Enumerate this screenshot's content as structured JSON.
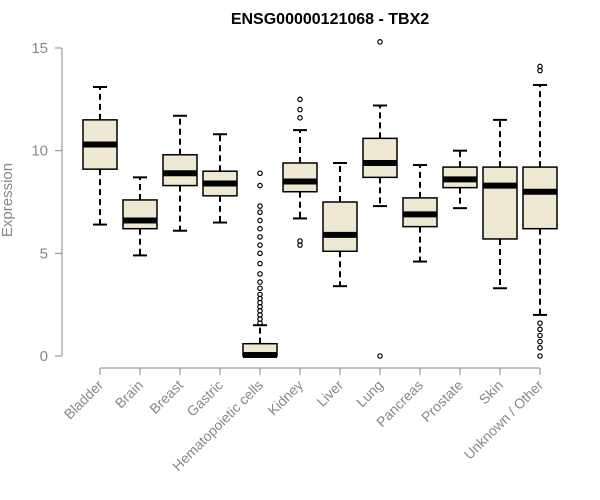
{
  "chart_data": {
    "type": "box",
    "title": "ENSG00000121068 - TBX2",
    "ylabel": "Expression",
    "xlabel": "",
    "ylim": [
      0,
      15
    ],
    "yticks": [
      0,
      5,
      10,
      15
    ],
    "colors": {
      "box_fill": "#EEE8D2",
      "box_stroke": "#000000",
      "axis": "#888888",
      "tick_label": "#888888",
      "title": "#000000"
    },
    "categories": [
      "Bladder",
      "Brain",
      "Breast",
      "Gastric",
      "Hematopoietic cells",
      "Kidney",
      "Liver",
      "Lung",
      "Pancreas",
      "Prostate",
      "Skin",
      "Unknown / Other"
    ],
    "boxes": [
      {
        "name": "Bladder",
        "whisker_low": 6.4,
        "q1": 9.1,
        "median": 10.3,
        "q3": 11.5,
        "whisker_high": 13.1,
        "outliers": []
      },
      {
        "name": "Brain",
        "whisker_low": 4.9,
        "q1": 6.2,
        "median": 6.6,
        "q3": 7.6,
        "whisker_high": 8.7,
        "outliers": []
      },
      {
        "name": "Breast",
        "whisker_low": 6.1,
        "q1": 8.3,
        "median": 8.9,
        "q3": 9.8,
        "whisker_high": 11.7,
        "outliers": []
      },
      {
        "name": "Gastric",
        "whisker_low": 6.5,
        "q1": 7.8,
        "median": 8.4,
        "q3": 9.0,
        "whisker_high": 10.8,
        "outliers": []
      },
      {
        "name": "Hematopoietic cells",
        "whisker_low": 0.0,
        "q1": 0.0,
        "median": 0.05,
        "q3": 0.6,
        "whisker_high": 1.5,
        "outliers": [
          1.6,
          1.8,
          2.0,
          2.2,
          2.4,
          2.6,
          2.8,
          3.0,
          3.3,
          3.6,
          4.0,
          4.5,
          5.0,
          5.4,
          5.8,
          6.2,
          6.6,
          7.0,
          7.3,
          8.3,
          8.9
        ]
      },
      {
        "name": "Kidney",
        "whisker_low": 6.7,
        "q1": 8.0,
        "median": 8.5,
        "q3": 9.4,
        "whisker_high": 11.0,
        "outliers": [
          5.4,
          5.6,
          11.6,
          12.0,
          12.5
        ]
      },
      {
        "name": "Liver",
        "whisker_low": 3.4,
        "q1": 5.1,
        "median": 5.9,
        "q3": 7.5,
        "whisker_high": 9.4,
        "outliers": []
      },
      {
        "name": "Lung",
        "whisker_low": 7.3,
        "q1": 8.7,
        "median": 9.4,
        "q3": 10.6,
        "whisker_high": 12.2,
        "outliers": [
          0.0,
          15.3
        ]
      },
      {
        "name": "Pancreas",
        "whisker_low": 4.6,
        "q1": 6.3,
        "median": 6.9,
        "q3": 7.7,
        "whisker_high": 9.3,
        "outliers": []
      },
      {
        "name": "Prostate",
        "whisker_low": 7.2,
        "q1": 8.2,
        "median": 8.6,
        "q3": 9.2,
        "whisker_high": 10.0,
        "outliers": []
      },
      {
        "name": "Skin",
        "whisker_low": 3.3,
        "q1": 5.7,
        "median": 8.3,
        "q3": 9.2,
        "whisker_high": 11.5,
        "outliers": []
      },
      {
        "name": "Unknown / Other",
        "whisker_low": 2.0,
        "q1": 6.2,
        "median": 8.0,
        "q3": 9.2,
        "whisker_high": 13.2,
        "outliers": [
          0.0,
          0.4,
          0.7,
          1.0,
          1.3,
          1.6,
          13.9,
          14.1
        ]
      }
    ]
  }
}
